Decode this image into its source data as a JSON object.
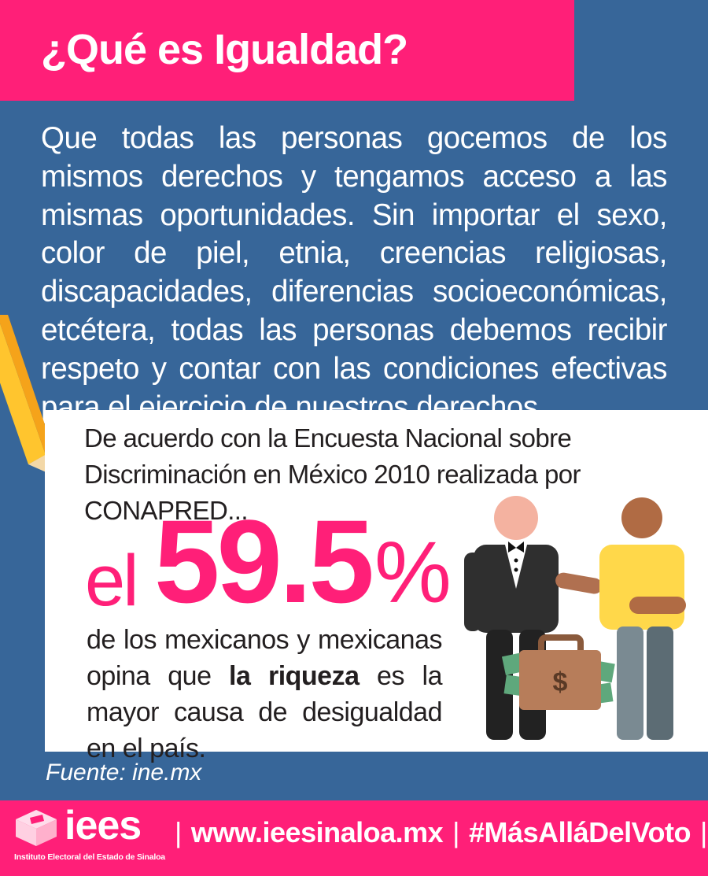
{
  "header": {
    "title": "¿Qué es Igualdad?"
  },
  "definition": {
    "text": "Que todas las personas gocemos de los mismos derechos y tengamos acceso a las mismas oportunidades. Sin importar el sexo, color de piel, etnia, creencias religiosas, discapacidades, diferencias socioeconómicas, etcétera, todas las personas debemos recibir respeto y contar con las condiciones efectivas para el ejercicio de nuestros derechos."
  },
  "card": {
    "intro": "De acuerdo con la Encuesta Nacional sobre Discriminación en México 2010 realizada por CONAPRED...",
    "stat_prefix": "el",
    "stat_value": "59.5",
    "stat_unit": "%",
    "desc_before": "de los mexicanos y mexicanas opina que ",
    "desc_bold": "la riqueza",
    "desc_after": " es la mayor causa de desigualdad en el país.",
    "money_symbol": "$"
  },
  "source": "Fuente: ine.mx",
  "footer": {
    "logo": "iees",
    "caption": "Instituto Electoral del Estado de Sinaloa",
    "separator": "|",
    "website": "www.ieesinaloa.mx",
    "hashtag": "#MásAlláDelVoto"
  },
  "colors": {
    "pink": "#ff1f78",
    "blue": "#376699",
    "white": "#ffffff"
  }
}
